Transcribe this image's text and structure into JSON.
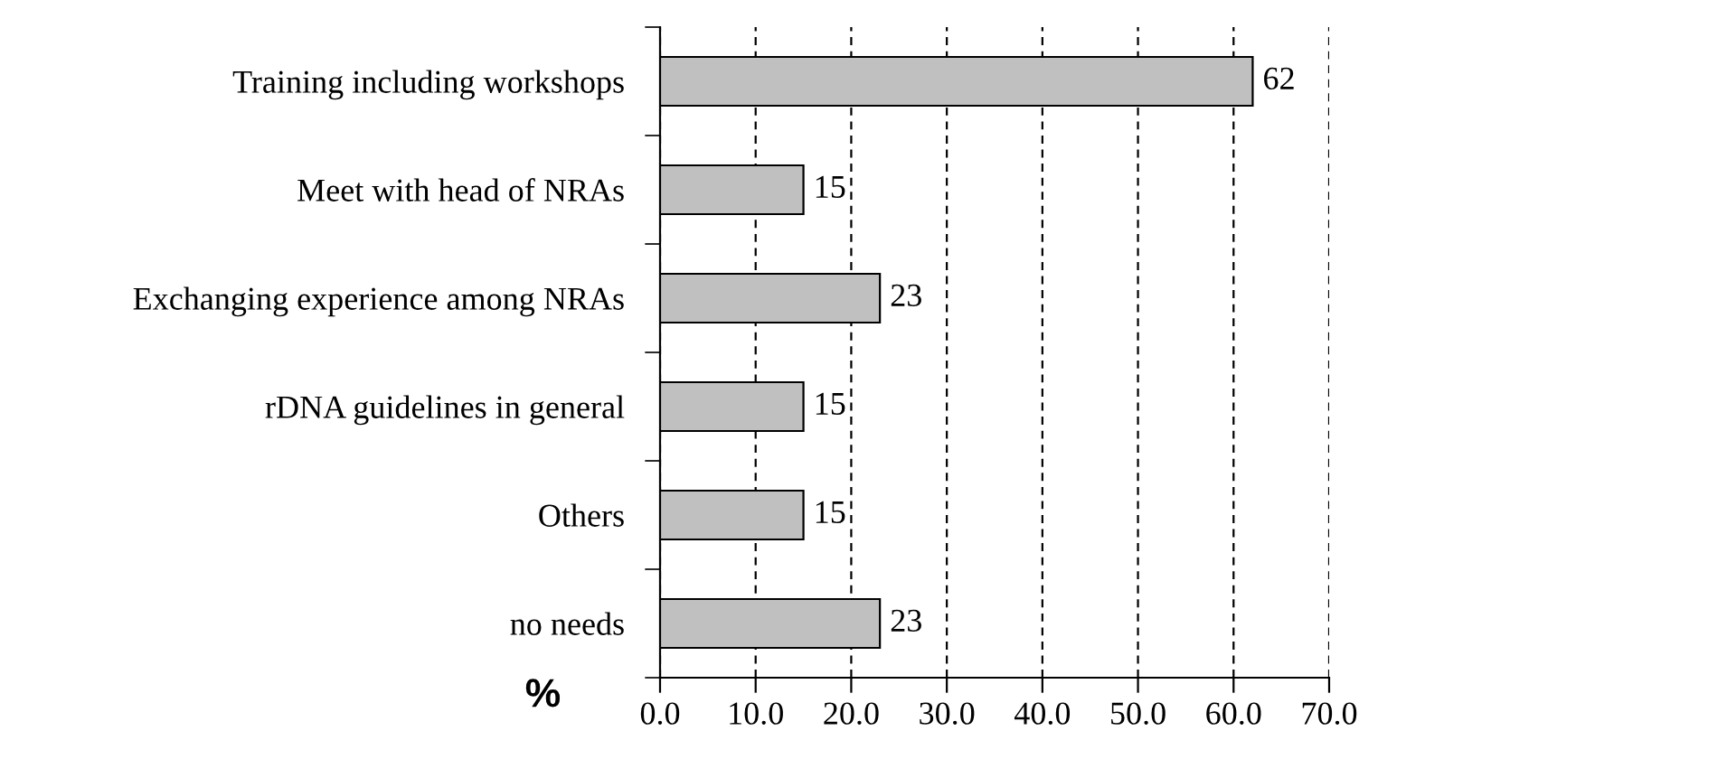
{
  "chart_data": {
    "type": "bar",
    "orientation": "horizontal",
    "xlabel": "%",
    "categories": [
      "Training including workshops",
      "Meet with head of NRAs",
      "Exchanging experience among NRAs",
      "rDNA guidelines in general",
      "Others",
      "no needs"
    ],
    "values": [
      62,
      15,
      23,
      15,
      15,
      23
    ],
    "color": "#c0c0c0",
    "data_labels": true,
    "xlim": [
      0,
      70
    ],
    "xticks": [
      {
        "value": 0,
        "label": "0.0"
      },
      {
        "value": 10,
        "label": "10.0"
      },
      {
        "value": 20,
        "label": "20.0"
      },
      {
        "value": 30,
        "label": "30.0"
      },
      {
        "value": 40,
        "label": "40.0"
      },
      {
        "value": 50,
        "label": "50.0"
      },
      {
        "value": 60,
        "label": "60.0"
      },
      {
        "value": 70,
        "label": "70.0"
      }
    ],
    "grid": "x"
  }
}
